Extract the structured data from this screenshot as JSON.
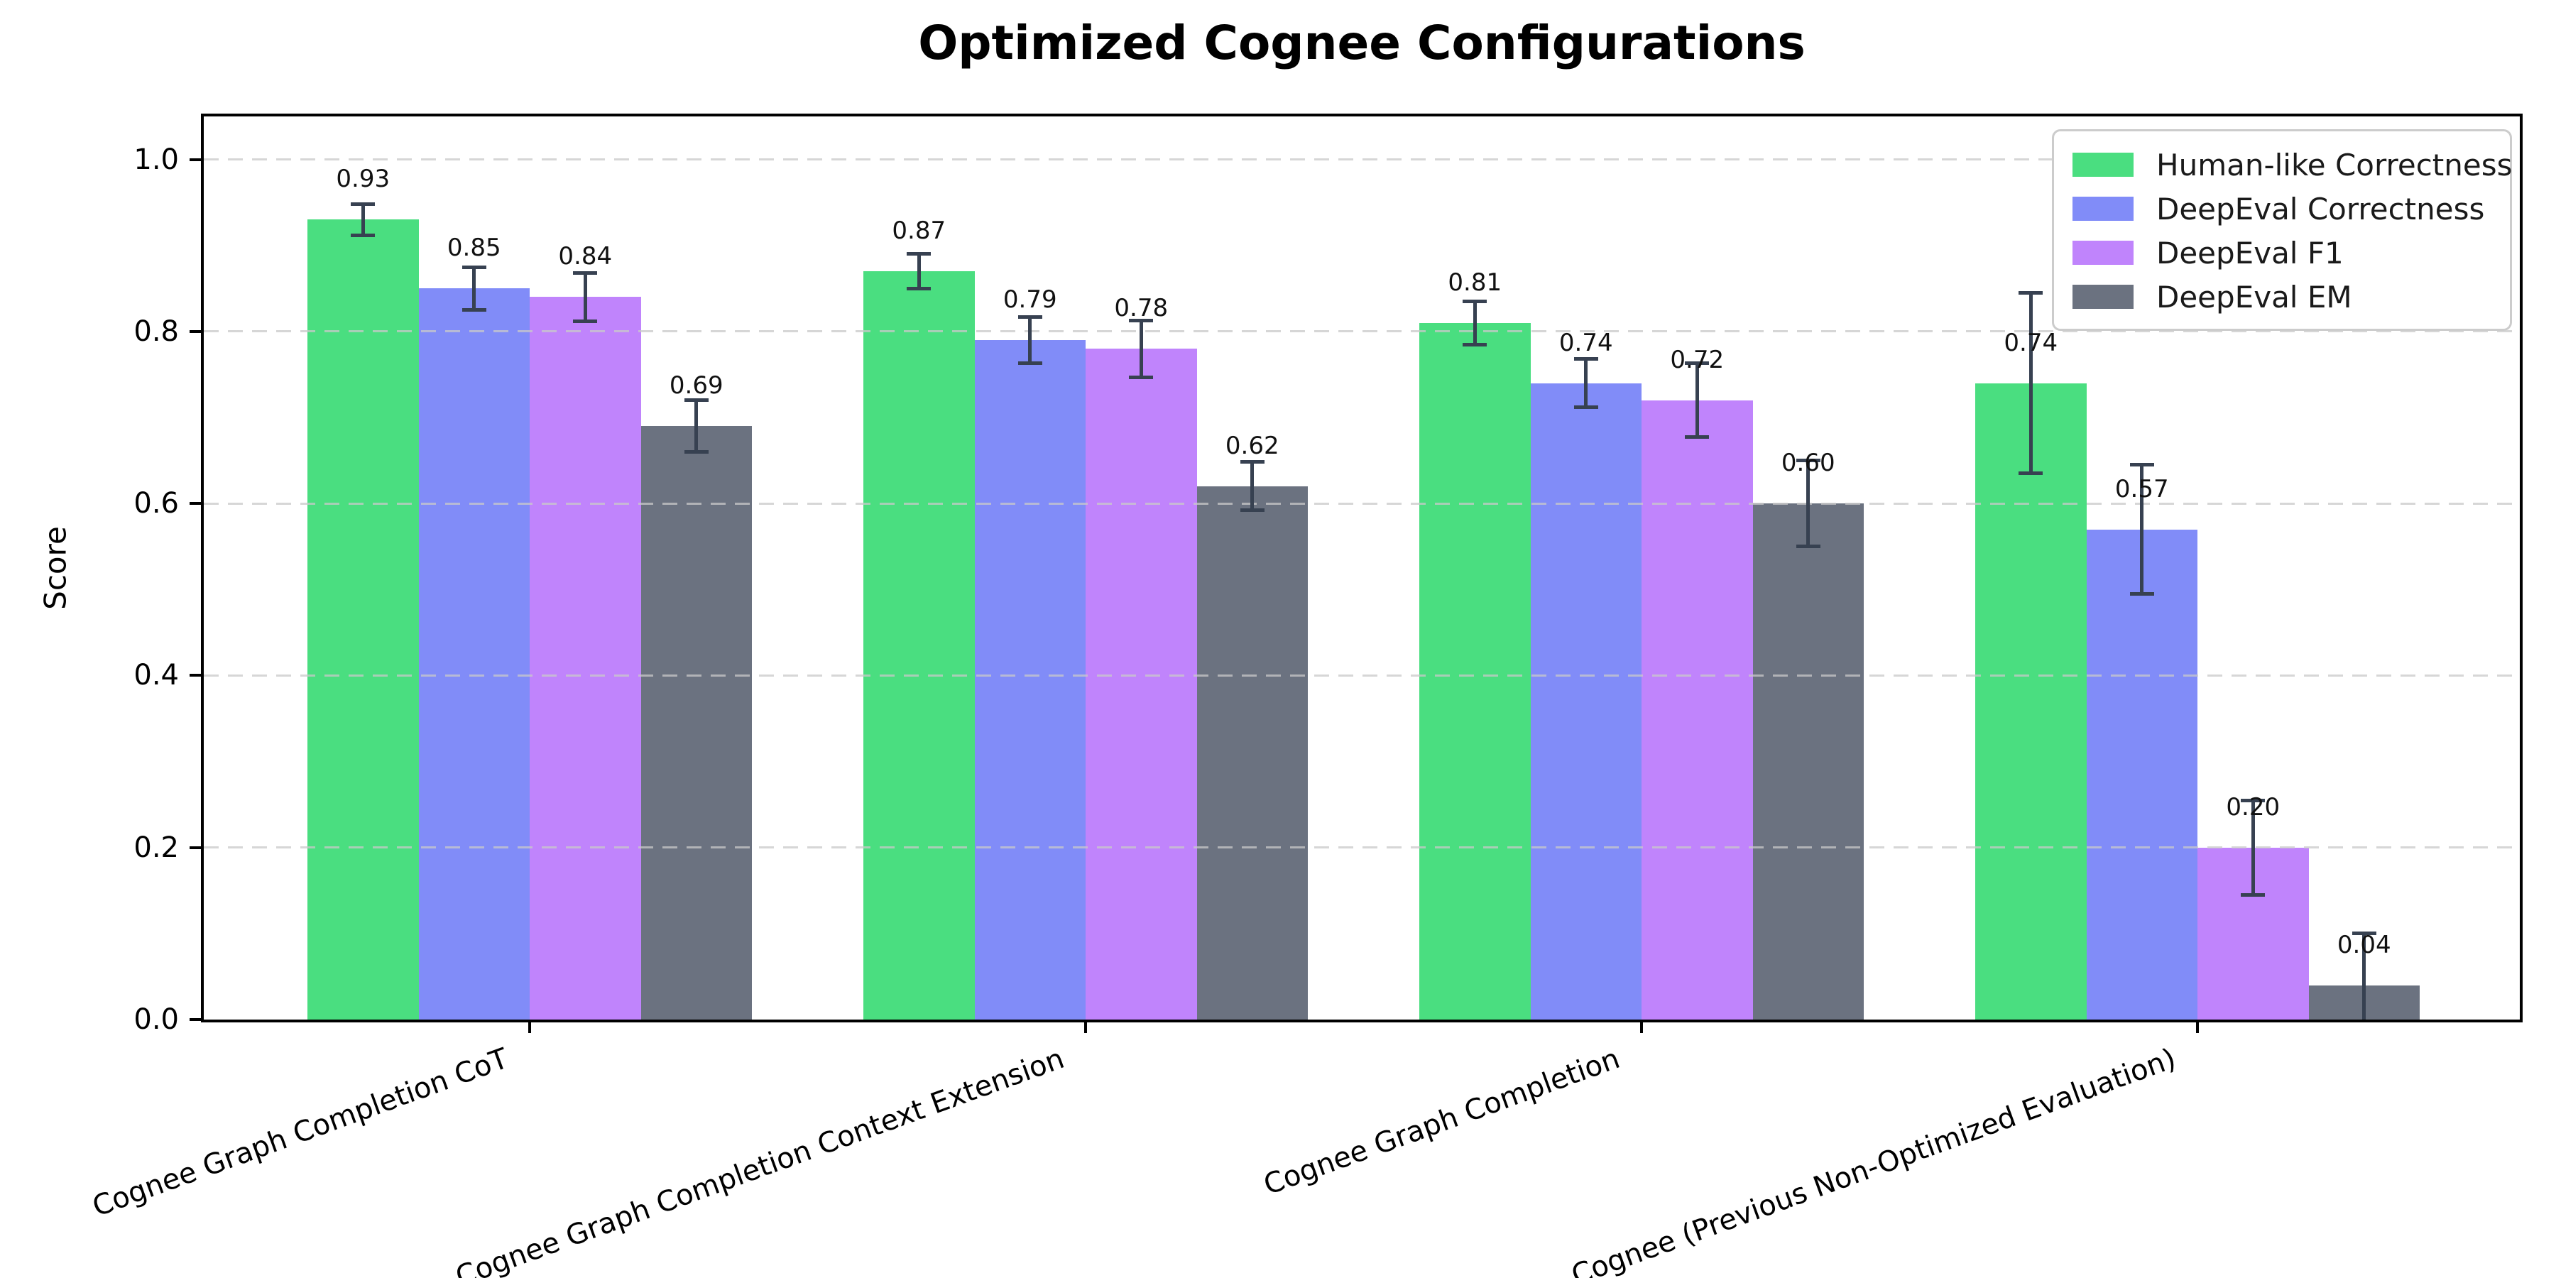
{
  "chart_data": {
    "type": "bar",
    "title": "Optimized Cognee Configurations",
    "ylabel": "Score",
    "xlabel": "",
    "categories": [
      "Cognee Graph Completion CoT",
      "Cognee Graph Completion Context Extension",
      "Cognee Graph Completion",
      "Cognee (Previous Non-Optimized Evaluation)"
    ],
    "series": [
      {
        "name": "Human-like Correctness",
        "color": "#4ade80",
        "values": [
          0.93,
          0.87,
          0.81,
          0.74
        ],
        "errors": [
          0.018,
          0.02,
          0.025,
          0.105
        ]
      },
      {
        "name": "DeepEval Correctness",
        "color": "#818cf8",
        "values": [
          0.85,
          0.79,
          0.74,
          0.57
        ],
        "errors": [
          0.025,
          0.027,
          0.028,
          0.075
        ]
      },
      {
        "name": "DeepEval F1",
        "color": "#c084fc",
        "values": [
          0.84,
          0.78,
          0.72,
          0.2
        ],
        "errors": [
          0.028,
          0.033,
          0.043,
          0.055
        ]
      },
      {
        "name": "DeepEval EM",
        "color": "#6b7280",
        "values": [
          0.69,
          0.62,
          0.6,
          0.04
        ],
        "errors": [
          0.03,
          0.028,
          0.05,
          0.06
        ]
      }
    ],
    "yticks": [
      0.0,
      0.2,
      0.4,
      0.6,
      0.8,
      1.0
    ],
    "ylim": [
      0,
      1.05
    ],
    "grid": true,
    "grid_style": "dashed",
    "legend_position": "upper right",
    "bar_label_decimals": 2,
    "error_bar_color": "#374151",
    "grid_color": "#c9c9c9",
    "spine_color": "#000000"
  }
}
